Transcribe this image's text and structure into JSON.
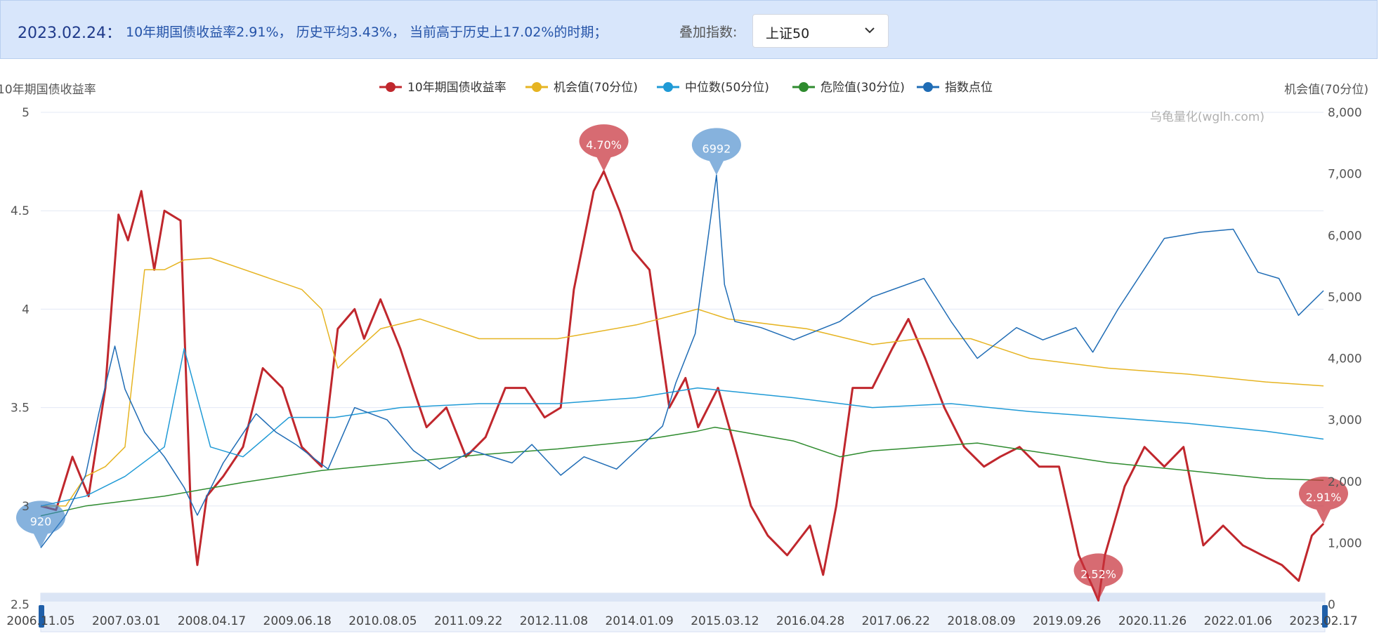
{
  "header": {
    "date": "2023.02.24：",
    "description": "10年期国债收益率2.91%， 历史平均3.43%， 当前高于历史上17.02%的时期；",
    "overlay_label": "叠加指数:",
    "overlay_value": "上证50"
  },
  "chart_data": {
    "type": "line",
    "left_axis_label": "10年期国债收益率",
    "right_axis_label": "机会值(70分位)",
    "watermark": "乌龟量化(wglh.com)",
    "left_ylim": [
      2.5,
      5
    ],
    "left_ticks": [
      "2.5",
      "3",
      "3.5",
      "4",
      "4.5",
      "5"
    ],
    "right_ylim": [
      0,
      8000
    ],
    "right_ticks": [
      "0",
      "1,000",
      "2,000",
      "3,000",
      "4,000",
      "5,000",
      "6,000",
      "7,000",
      "8,000"
    ],
    "x_ticks": [
      "2006.11.05",
      "2007.03.01",
      "2008.04.17",
      "2009.06.18",
      "2010.08.05",
      "2011.09.22",
      "2012.11.08",
      "2014.01.09",
      "2015.03.12",
      "2016.04.28",
      "2017.06.22",
      "2018.08.09",
      "2019.09.26",
      "2020.11.26",
      "2022.01.06",
      "2023.02.17"
    ],
    "x_range": [
      "2006.11.05",
      "2023.02.24"
    ],
    "legend_position": "top",
    "series": [
      {
        "name": "10年期国债收益率",
        "color": "#c0272d",
        "axis": "left",
        "x": [
          "2006.11.05",
          "2007.01.15",
          "2007.04.01",
          "2007.06.15",
          "2007.09.01",
          "2007.11.01",
          "2007.12.15",
          "2008.02.15",
          "2008.04.15",
          "2008.06.01",
          "2008.08.15",
          "2008.10.01",
          "2008.11.01",
          "2008.12.15",
          "2009.03.01",
          "2009.06.01",
          "2009.09.01",
          "2009.12.01",
          "2010.03.01",
          "2010.06.01",
          "2010.08.15",
          "2010.11.01",
          "2010.12.15",
          "2011.03.01",
          "2011.06.01",
          "2011.08.15",
          "2011.10.01",
          "2012.01.01",
          "2012.04.01",
          "2012.07.01",
          "2012.10.01",
          "2013.01.01",
          "2013.04.01",
          "2013.06.15",
          "2013.08.15",
          "2013.11.15",
          "2014.01.01",
          "2014.03.15",
          "2014.05.15",
          "2014.08.01",
          "2014.11.01",
          "2015.01.15",
          "2015.03.15",
          "2015.06.15",
          "2015.09.01",
          "2015.11.15",
          "2016.02.01",
          "2016.05.01",
          "2016.08.15",
          "2016.10.15",
          "2016.12.15",
          "2017.03.01",
          "2017.06.01",
          "2017.09.01",
          "2017.11.15",
          "2018.02.01",
          "2018.05.01",
          "2018.08.01",
          "2018.11.01",
          "2019.01.15",
          "2019.04.15",
          "2019.07.15",
          "2019.10.15",
          "2020.01.15",
          "2020.04.15",
          "2020.05.15",
          "2020.08.15",
          "2020.11.15",
          "2021.02.15",
          "2021.05.15",
          "2021.08.15",
          "2021.11.15",
          "2022.02.15",
          "2022.05.15",
          "2022.08.15",
          "2022.11.01",
          "2023.01.01",
          "2023.02.24"
        ],
        "values": [
          3.0,
          2.98,
          3.25,
          3.05,
          3.6,
          4.48,
          4.35,
          4.6,
          4.2,
          4.5,
          4.45,
          3.0,
          2.7,
          3.05,
          3.15,
          3.3,
          3.7,
          3.6,
          3.3,
          3.2,
          3.9,
          4.0,
          3.85,
          4.05,
          3.8,
          3.55,
          3.4,
          3.5,
          3.25,
          3.35,
          3.6,
          3.6,
          3.45,
          3.5,
          4.1,
          4.6,
          4.7,
          4.5,
          4.3,
          4.2,
          3.5,
          3.65,
          3.4,
          3.6,
          3.3,
          3.0,
          2.85,
          2.75,
          2.9,
          2.65,
          3.0,
          3.6,
          3.6,
          3.8,
          3.95,
          3.75,
          3.5,
          3.3,
          3.2,
          3.25,
          3.3,
          3.2,
          3.2,
          2.75,
          2.52,
          2.75,
          3.1,
          3.3,
          3.2,
          3.3,
          2.8,
          2.9,
          2.8,
          2.75,
          2.7,
          2.62,
          2.85,
          2.91
        ]
      },
      {
        "name": "机会值(70分位)",
        "color": "#e6b422",
        "axis": "left",
        "x": [
          "2006.11.05",
          "2007.03.01",
          "2007.06.01",
          "2007.09.01",
          "2007.12.01",
          "2008.03.01",
          "2008.06.01",
          "2008.09.01",
          "2009.01.01",
          "2010.03.01",
          "2010.06.01",
          "2010.08.15",
          "2010.10.01",
          "2011.03.01",
          "2011.09.01",
          "2012.06.01",
          "2013.06.01",
          "2014.06.01",
          "2015.03.12",
          "2015.08.01",
          "2016.08.01",
          "2017.06.01",
          "2018.01.01",
          "2018.09.01",
          "2019.06.01",
          "2020.06.01",
          "2021.06.01",
          "2022.06.01",
          "2023.02.24"
        ],
        "values": [
          3.0,
          3.0,
          3.15,
          3.2,
          3.3,
          4.2,
          4.2,
          4.25,
          4.26,
          4.1,
          4.0,
          3.7,
          3.75,
          3.9,
          3.95,
          3.85,
          3.85,
          3.92,
          4.0,
          3.95,
          3.9,
          3.82,
          3.85,
          3.85,
          3.75,
          3.7,
          3.67,
          3.63,
          3.61
        ]
      },
      {
        "name": "中位数(50分位)",
        "color": "#1f9ad6",
        "axis": "left",
        "x": [
          "2006.11.05",
          "2007.06.01",
          "2007.12.01",
          "2008.06.01",
          "2008.09.01",
          "2009.01.01",
          "2009.06.01",
          "2010.01.01",
          "2010.08.01",
          "2011.06.01",
          "2012.06.01",
          "2013.06.01",
          "2014.06.01",
          "2015.03.12",
          "2016.06.01",
          "2017.06.01",
          "2018.06.01",
          "2019.06.01",
          "2020.06.01",
          "2021.06.01",
          "2022.06.01",
          "2023.02.24"
        ],
        "values": [
          3.0,
          3.05,
          3.15,
          3.3,
          3.8,
          3.3,
          3.25,
          3.45,
          3.45,
          3.5,
          3.52,
          3.52,
          3.55,
          3.6,
          3.55,
          3.5,
          3.52,
          3.48,
          3.45,
          3.42,
          3.38,
          3.34
        ]
      },
      {
        "name": "危险值(30分位)",
        "color": "#2e8b2e",
        "axis": "left",
        "x": [
          "2006.11.05",
          "2007.06.01",
          "2008.06.01",
          "2009.06.01",
          "2010.06.01",
          "2011.06.01",
          "2012.06.01",
          "2013.06.01",
          "2014.06.01",
          "2015.03.12",
          "2015.06.01",
          "2016.06.01",
          "2017.01.01",
          "2017.06.01",
          "2018.06.01",
          "2018.10.01",
          "2019.06.01",
          "2020.06.01",
          "2021.06.01",
          "2022.06.01",
          "2023.02.24"
        ],
        "values": [
          2.95,
          3.0,
          3.05,
          3.12,
          3.18,
          3.22,
          3.26,
          3.29,
          3.33,
          3.38,
          3.4,
          3.33,
          3.25,
          3.28,
          3.31,
          3.32,
          3.28,
          3.22,
          3.18,
          3.14,
          3.13
        ]
      },
      {
        "name": "指数点位",
        "color": "#1f6cb5",
        "axis": "right",
        "x": [
          "2006.11.05",
          "2007.03.01",
          "2007.06.01",
          "2007.08.01",
          "2007.10.15",
          "2007.12.01",
          "2008.03.01",
          "2008.06.01",
          "2008.09.01",
          "2008.11.01",
          "2009.03.01",
          "2009.08.01",
          "2009.11.01",
          "2010.02.01",
          "2010.07.01",
          "2010.11.01",
          "2011.04.01",
          "2011.08.01",
          "2011.12.01",
          "2012.05.01",
          "2012.11.01",
          "2013.02.01",
          "2013.06.15",
          "2013.10.01",
          "2014.03.01",
          "2014.07.01",
          "2014.10.01",
          "2014.12.01",
          "2015.03.01",
          "2015.06.08",
          "2015.07.15",
          "2015.09.01",
          "2016.01.01",
          "2016.06.01",
          "2017.01.01",
          "2017.06.01",
          "2018.01.26",
          "2018.06.01",
          "2018.10.01",
          "2019.04.01",
          "2019.08.01",
          "2020.01.01",
          "2020.03.20",
          "2020.07.15",
          "2021.02.15",
          "2021.08.01",
          "2022.01.01",
          "2022.04.26",
          "2022.08.01",
          "2022.10.31",
          "2023.02.24"
        ],
        "values": [
          920,
          1450,
          2100,
          3100,
          4200,
          3500,
          2800,
          2400,
          1900,
          1450,
          2300,
          3100,
          2800,
          2600,
          2200,
          3200,
          3000,
          2500,
          2200,
          2500,
          2300,
          2600,
          2100,
          2400,
          2200,
          2600,
          2900,
          3600,
          4400,
          6980,
          5200,
          4600,
          4500,
          4300,
          4600,
          5000,
          5300,
          4600,
          4000,
          4500,
          4300,
          4500,
          4100,
          4800,
          5950,
          6050,
          6100,
          5400,
          5300,
          4700,
          5100
        ]
      }
    ],
    "annotations": [
      {
        "series": "10年期国债收益率",
        "label": "4.70%",
        "x": "2014.01.01",
        "value": 4.7
      },
      {
        "series": "10年期国债收益率",
        "label": "2.52%",
        "x": "2020.04.15",
        "value": 2.52
      },
      {
        "series": "10年期国债收益率",
        "label": "2.91%",
        "x": "2023.02.24",
        "value": 2.91
      },
      {
        "series": "指数点位",
        "label": "6992",
        "x": "2015.06.08",
        "value": 6980
      },
      {
        "series": "指数点位",
        "label": "920",
        "x": "2006.11.05",
        "value": 920
      }
    ]
  }
}
